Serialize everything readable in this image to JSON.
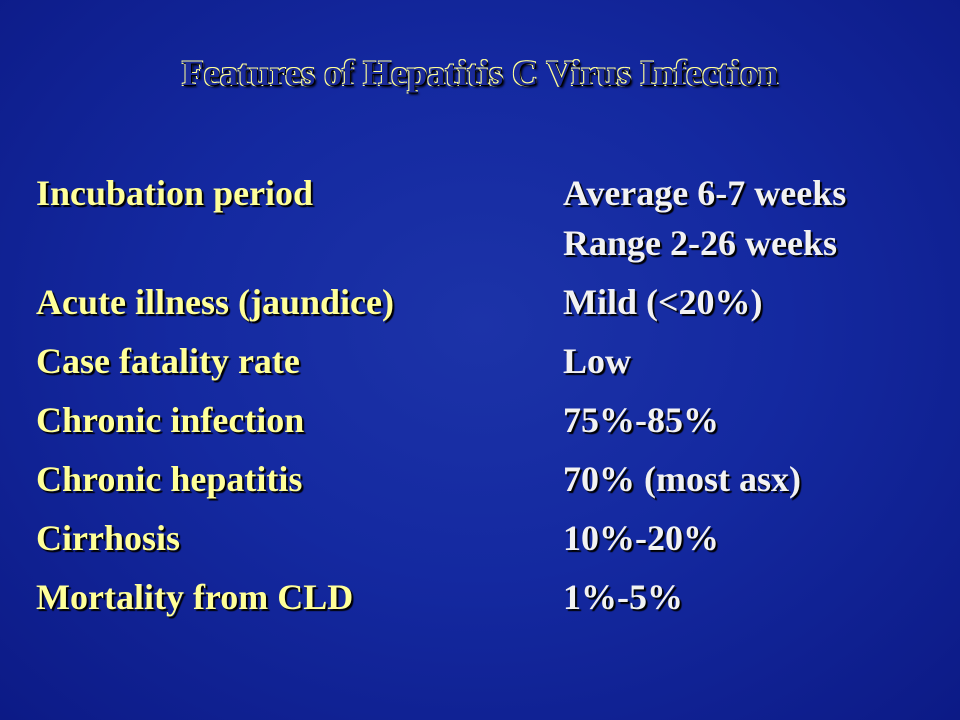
{
  "title": "Features of Hepatitis C Virus Infection",
  "rows": [
    {
      "label": "Incubation period",
      "values": [
        "Average 6-7 weeks",
        "Range 2-26 weeks"
      ]
    },
    {
      "label": "Acute illness (jaundice)",
      "values": [
        "Mild (<20%)"
      ]
    },
    {
      "label": "Case fatality rate",
      "values": [
        "Low"
      ]
    },
    {
      "label": "Chronic infection",
      "values": [
        "75%-85%"
      ]
    },
    {
      "label": "Chronic hepatitis",
      "values": [
        "70% (most asx)"
      ]
    },
    {
      "label": "Cirrhosis",
      "values": [
        "10%-20%"
      ]
    },
    {
      "label": "Mortality from CLD",
      "values": [
        "1%-5%"
      ]
    }
  ]
}
